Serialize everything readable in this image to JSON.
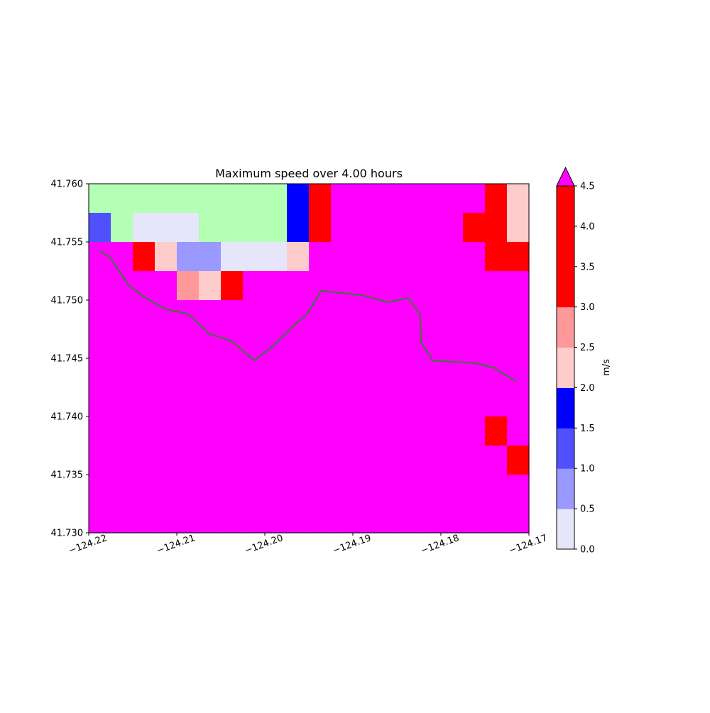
{
  "chart_data": {
    "type": "heatmap",
    "title": "Maximum speed over 4.00 hours",
    "xlim": [
      -124.22,
      -124.17
    ],
    "ylim": [
      41.73,
      41.76
    ],
    "x_ticks": [
      {
        "value": -124.22,
        "label": "−124.22"
      },
      {
        "value": -124.21,
        "label": "−124.21"
      },
      {
        "value": -124.2,
        "label": "−124.20"
      },
      {
        "value": -124.19,
        "label": "−124.19"
      },
      {
        "value": -124.18,
        "label": "−124.18"
      },
      {
        "value": -124.17,
        "label": "−124.17"
      }
    ],
    "y_ticks": [
      {
        "value": 41.76,
        "label": "41.760"
      },
      {
        "value": 41.755,
        "label": "41.755"
      },
      {
        "value": 41.75,
        "label": "41.750"
      },
      {
        "value": 41.745,
        "label": "41.745"
      },
      {
        "value": 41.74,
        "label": "41.740"
      },
      {
        "value": 41.735,
        "label": "41.735"
      },
      {
        "value": 41.73,
        "label": "41.730"
      }
    ],
    "grid": {
      "columns": 20,
      "rows": 12,
      "background_class": 7,
      "land_class": -1,
      "cells": [
        {
          "r": 0,
          "c": 0,
          "cls": -1
        },
        {
          "r": 0,
          "c": 1,
          "cls": -1
        },
        {
          "r": 0,
          "c": 2,
          "cls": -1
        },
        {
          "r": 0,
          "c": 3,
          "cls": -1
        },
        {
          "r": 0,
          "c": 4,
          "cls": -1
        },
        {
          "r": 0,
          "c": 5,
          "cls": -1
        },
        {
          "r": 0,
          "c": 6,
          "cls": -1
        },
        {
          "r": 0,
          "c": 7,
          "cls": -1
        },
        {
          "r": 0,
          "c": 8,
          "cls": -1
        },
        {
          "r": 0,
          "c": 9,
          "cls": 3
        },
        {
          "r": 0,
          "c": 10,
          "cls": 6
        },
        {
          "r": 0,
          "c": 18,
          "cls": 6
        },
        {
          "r": 0,
          "c": 19,
          "cls": 4
        },
        {
          "r": 1,
          "c": 0,
          "cls": 2
        },
        {
          "r": 1,
          "c": 1,
          "cls": -1
        },
        {
          "r": 1,
          "c": 2,
          "cls": 0
        },
        {
          "r": 1,
          "c": 3,
          "cls": 0
        },
        {
          "r": 1,
          "c": 4,
          "cls": 0
        },
        {
          "r": 1,
          "c": 5,
          "cls": -1
        },
        {
          "r": 1,
          "c": 6,
          "cls": -1
        },
        {
          "r": 1,
          "c": 7,
          "cls": -1
        },
        {
          "r": 1,
          "c": 8,
          "cls": -1
        },
        {
          "r": 1,
          "c": 9,
          "cls": 3
        },
        {
          "r": 1,
          "c": 10,
          "cls": 6
        },
        {
          "r": 1,
          "c": 17,
          "cls": 6
        },
        {
          "r": 1,
          "c": 18,
          "cls": 6
        },
        {
          "r": 1,
          "c": 19,
          "cls": 4
        },
        {
          "r": 2,
          "c": 2,
          "cls": 6
        },
        {
          "r": 2,
          "c": 3,
          "cls": 4
        },
        {
          "r": 2,
          "c": 4,
          "cls": 1
        },
        {
          "r": 2,
          "c": 5,
          "cls": 1
        },
        {
          "r": 2,
          "c": 6,
          "cls": 0
        },
        {
          "r": 2,
          "c": 7,
          "cls": 0
        },
        {
          "r": 2,
          "c": 8,
          "cls": 0
        },
        {
          "r": 2,
          "c": 9,
          "cls": 4
        },
        {
          "r": 2,
          "c": 18,
          "cls": 6
        },
        {
          "r": 2,
          "c": 19,
          "cls": 6
        },
        {
          "r": 3,
          "c": 4,
          "cls": 5
        },
        {
          "r": 3,
          "c": 5,
          "cls": 4
        },
        {
          "r": 3,
          "c": 6,
          "cls": 6
        },
        {
          "r": 8,
          "c": 18,
          "cls": 6
        },
        {
          "r": 9,
          "c": 19,
          "cls": 6
        }
      ]
    },
    "coastline": {
      "color": "#2e7d32",
      "points": [
        [
          -124.2188,
          41.7542
        ],
        [
          -124.2176,
          41.7537
        ],
        [
          -124.2155,
          41.7513
        ],
        [
          -124.2138,
          41.7503
        ],
        [
          -124.2112,
          41.7492
        ],
        [
          -124.2087,
          41.7488
        ],
        [
          -124.2063,
          41.7471
        ],
        [
          -124.2038,
          41.7465
        ],
        [
          -124.2012,
          41.7448
        ],
        [
          -124.199,
          41.7461
        ],
        [
          -124.1966,
          41.7479
        ],
        [
          -124.1952,
          41.7488
        ],
        [
          -124.1936,
          41.7508
        ],
        [
          -124.1888,
          41.7504
        ],
        [
          -124.186,
          41.7498
        ],
        [
          -124.1837,
          41.7502
        ],
        [
          -124.1824,
          41.7488
        ],
        [
          -124.1822,
          41.7463
        ],
        [
          -124.1809,
          41.7448
        ],
        [
          -124.1762,
          41.7446
        ],
        [
          -124.174,
          41.7442
        ],
        [
          -124.1732,
          41.7438
        ],
        [
          -124.1714,
          41.743
        ]
      ]
    },
    "colorbar": {
      "label": "m/s",
      "boundaries": [
        0.0,
        0.5,
        1.0,
        1.5,
        2.0,
        2.5,
        3.0,
        4.5
      ],
      "tick_labels": [
        "0.0",
        "0.5",
        "1.0",
        "1.5",
        "2.0",
        "2.5",
        "3.0",
        "3.5",
        "4.0",
        "4.5"
      ],
      "colors": [
        "#e6e6fa",
        "#9999ff",
        "#5050ff",
        "#0000ff",
        "#ffcccc",
        "#ff9999",
        "#ff0000"
      ],
      "over_color": "#ff00ff",
      "land_color": "#b3ffb3",
      "extend": "max"
    }
  }
}
